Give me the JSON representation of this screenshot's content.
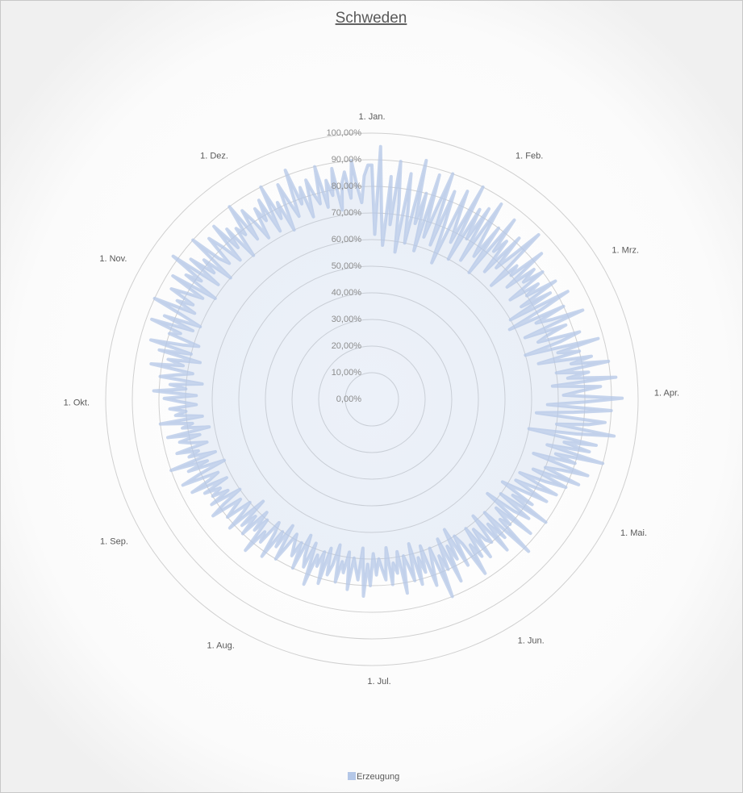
{
  "chart_data": {
    "type": "radar",
    "title": "Schweden",
    "categories": [
      "1. Jan.",
      null,
      null,
      null,
      null,
      null,
      null,
      null,
      null,
      null,
      null,
      null,
      null,
      null,
      null,
      null,
      null,
      null,
      null,
      null,
      null,
      null,
      null,
      null,
      null,
      null,
      null,
      null,
      null,
      null,
      null,
      "1. Feb.",
      null,
      null,
      null,
      null,
      null,
      null,
      null,
      null,
      null,
      null,
      null,
      null,
      null,
      null,
      null,
      null,
      null,
      null,
      null,
      null,
      null,
      null,
      null,
      null,
      null,
      null,
      null,
      "1. Mrz.",
      null,
      null,
      null,
      null,
      null,
      null,
      null,
      null,
      null,
      null,
      null,
      null,
      null,
      null,
      null,
      null,
      null,
      null,
      null,
      null,
      null,
      null,
      null,
      null,
      null,
      null,
      null,
      null,
      null,
      null,
      "1. Apr.",
      null,
      null,
      null,
      null,
      null,
      null,
      null,
      null,
      null,
      null,
      null,
      null,
      null,
      null,
      null,
      null,
      null,
      null,
      null,
      null,
      null,
      null,
      null,
      null,
      null,
      null,
      null,
      null,
      null,
      "1. Mai.",
      null,
      null,
      null,
      null,
      null,
      null,
      null,
      null,
      null,
      null,
      null,
      null,
      null,
      null,
      null,
      null,
      null,
      null,
      null,
      null,
      null,
      null,
      null,
      null,
      null,
      null,
      null,
      null,
      null,
      null,
      "1. Jun.",
      null,
      null,
      null,
      null,
      null,
      null,
      null,
      null,
      null,
      null,
      null,
      null,
      null,
      null,
      null,
      null,
      null,
      null,
      null,
      null,
      null,
      null,
      null,
      null,
      null,
      null,
      null,
      null,
      null,
      "1. Jul.",
      null,
      null,
      null,
      null,
      null,
      null,
      null,
      null,
      null,
      null,
      null,
      null,
      null,
      null,
      null,
      null,
      null,
      null,
      null,
      null,
      null,
      null,
      null,
      null,
      null,
      null,
      null,
      null,
      null,
      null,
      "1. Aug.",
      null,
      null,
      null,
      null,
      null,
      null,
      null,
      null,
      null,
      null,
      null,
      null,
      null,
      null,
      null,
      null,
      null,
      null,
      null,
      null,
      null,
      null,
      null,
      null,
      null,
      null,
      null,
      null,
      null,
      null,
      "1. Sep.",
      null,
      null,
      null,
      null,
      null,
      null,
      null,
      null,
      null,
      null,
      null,
      null,
      null,
      null,
      null,
      null,
      null,
      null,
      null,
      null,
      null,
      null,
      null,
      null,
      null,
      null,
      null,
      null,
      null,
      "1. Okt.",
      null,
      null,
      null,
      null,
      null,
      null,
      null,
      null,
      null,
      null,
      null,
      null,
      null,
      null,
      null,
      null,
      null,
      null,
      null,
      null,
      null,
      null,
      null,
      null,
      null,
      null,
      null,
      null,
      null,
      null,
      "1. Nov.",
      null,
      null,
      null,
      null,
      null,
      null,
      null,
      null,
      null,
      null,
      null,
      null,
      null,
      null,
      null,
      null,
      null,
      null,
      null,
      null,
      null,
      null,
      null,
      null,
      null,
      null,
      null,
      null,
      null,
      "1. Dez.",
      null,
      null,
      null,
      null,
      null,
      null,
      null,
      null,
      null,
      null,
      null,
      null,
      null,
      null,
      null,
      null,
      null,
      null,
      null,
      null,
      null,
      null,
      null,
      null,
      null,
      null,
      null,
      null,
      null,
      null
    ],
    "series": [
      {
        "name": "Erzeugung",
        "color": "#b4c7e7",
        "values": [
          88,
          62,
          95,
          70,
          58,
          84,
          66,
          90,
          74,
          56,
          86,
          72,
          60,
          92,
          68,
          80,
          58,
          88,
          64,
          76,
          90,
          62,
          84,
          70,
          56,
          86,
          74,
          66,
          90,
          60,
          82,
          70,
          84,
          62,
          88,
          74,
          66,
          80,
          60,
          86,
          72,
          78,
          64,
          82,
          68,
          76,
          88,
          62,
          74,
          70,
          84,
          66,
          78,
          72,
          80,
          64,
          76,
          70,
          82,
          66,
          78,
          60,
          84,
          72,
          58,
          80,
          68,
          74,
          86,
          62,
          78,
          70,
          66,
          82,
          74,
          60,
          88,
          72,
          80,
          64,
          84,
          76,
          90,
          70,
          82,
          74,
          92,
          68,
          86,
          78,
          72,
          94,
          80,
          66,
          90,
          76,
          62,
          88,
          82,
          70,
          92,
          78,
          60,
          86,
          74,
          84,
          68,
          90,
          72,
          80,
          64,
          86,
          76,
          70,
          84,
          66,
          80,
          72,
          62,
          78,
          70,
          62,
          76,
          66,
          58,
          72,
          64,
          80,
          60,
          74,
          68,
          56,
          78,
          62,
          70,
          66,
          82,
          60,
          72,
          64,
          76,
          58,
          70,
          68,
          62,
          74,
          60,
          72,
          66,
          78,
          64,
          60,
          72,
          56,
          68,
          62,
          76,
          58,
          70,
          64,
          80,
          60,
          66,
          74,
          58,
          68,
          62,
          72,
          56,
          70,
          64,
          60,
          74,
          58,
          66,
          62,
          70,
          56,
          68,
          64,
          60,
          66,
          58,
          70,
          62,
          74,
          56,
          68,
          64,
          60,
          72,
          58,
          66,
          62,
          70,
          56,
          64,
          68,
          58,
          72,
          60,
          66,
          62,
          74,
          58,
          68,
          64,
          56,
          70,
          60,
          66,
          62,
          58,
          64,
          70,
          56,
          66,
          60,
          72,
          62,
          58,
          68,
          64,
          74,
          60,
          66,
          58,
          70,
          62,
          68,
          56,
          72,
          64,
          60,
          70,
          66,
          62,
          74,
          68,
          60,
          72,
          64,
          70,
          66,
          72,
          62,
          76,
          68,
          64,
          78,
          70,
          60,
          74,
          66,
          80,
          62,
          72,
          68,
          76,
          64,
          70,
          74,
          66,
          78,
          62,
          72,
          68,
          80,
          64,
          74,
          70,
          76,
          66,
          72,
          78,
          66,
          82,
          70,
          76,
          64,
          80,
          74,
          68,
          84,
          72,
          78,
          66,
          82,
          70,
          86,
          74,
          68,
          80,
          76,
          88,
          72,
          84,
          70,
          78,
          90,
          74,
          82,
          76,
          86,
          80,
          74,
          88,
          70,
          84,
          78,
          92,
          72,
          86,
          76,
          82,
          70,
          90,
          78,
          74,
          86,
          80,
          72,
          88,
          76,
          84,
          70,
          82,
          78,
          90,
          74,
          86,
          80,
          72,
          84,
          78,
          86,
          72,
          90,
          76,
          82,
          70,
          88,
          80,
          74,
          92,
          78,
          84,
          72,
          86,
          80,
          76,
          90,
          74,
          84,
          78,
          88,
          72,
          82,
          86,
          76,
          90,
          80,
          74,
          84,
          88
        ]
      }
    ],
    "ylim": [
      0,
      100
    ],
    "yticks": [
      {
        "value": 0,
        "label": "0,00%"
      },
      {
        "value": 10,
        "label": "10,00%"
      },
      {
        "value": 20,
        "label": "20,00%"
      },
      {
        "value": 30,
        "label": "30,00%"
      },
      {
        "value": 40,
        "label": "40,00%"
      },
      {
        "value": 50,
        "label": "50,00%"
      },
      {
        "value": 60,
        "label": "60,00%"
      },
      {
        "value": 70,
        "label": "70,00%"
      },
      {
        "value": 80,
        "label": "80,00%"
      },
      {
        "value": 90,
        "label": "90,00%"
      },
      {
        "value": 100,
        "label": "100,00%"
      }
    ],
    "grid": true,
    "legend": "bottom"
  }
}
